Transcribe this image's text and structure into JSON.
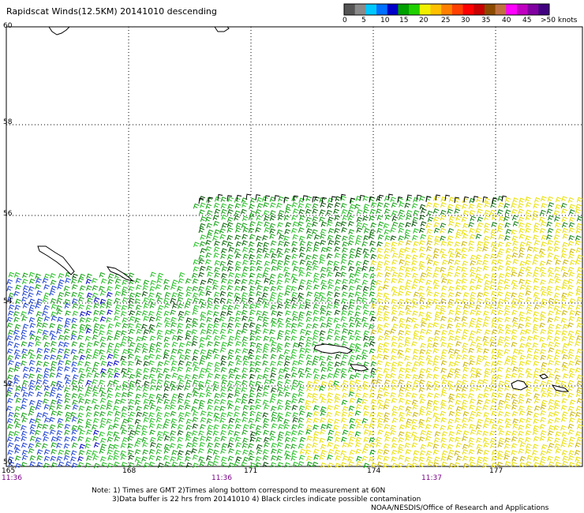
{
  "title": "Rapidscat Winds(12.5KM) 20141010 descending",
  "legend": {
    "labels": [
      "0",
      "5",
      "10",
      "15",
      "20",
      "25",
      "30",
      "35",
      "40",
      "45",
      ">50 knots"
    ],
    "colors": [
      "#555555",
      "#8a8a8a",
      "#00c8ff",
      "#0070ff",
      "#0000c8",
      "#00a000",
      "#20d000",
      "#f0f000",
      "#ffc000",
      "#ff8000",
      "#ff4000",
      "#ff0000",
      "#c80000",
      "#8b4a00",
      "#c07040",
      "#ff00ff",
      "#c000c0",
      "#8000a0",
      "#400080"
    ]
  },
  "lat_labels": [
    "60",
    "58",
    "56",
    "54",
    "52",
    "50"
  ],
  "lon_labels": [
    "165",
    "168",
    "171",
    "174",
    "177"
  ],
  "time_labels": [
    "11:36",
    "11:36",
    "11:37"
  ],
  "notes": {
    "line1": "Note: 1) Times are GMT 2)Times along bottom correspond to measurement at 60N",
    "line2": "3)Data buffer is 22 hrs from 20141010 4) Black circles indicate possible contamination",
    "line3": "NOAA/NESDIS/Office of Research and Applications"
  }
}
